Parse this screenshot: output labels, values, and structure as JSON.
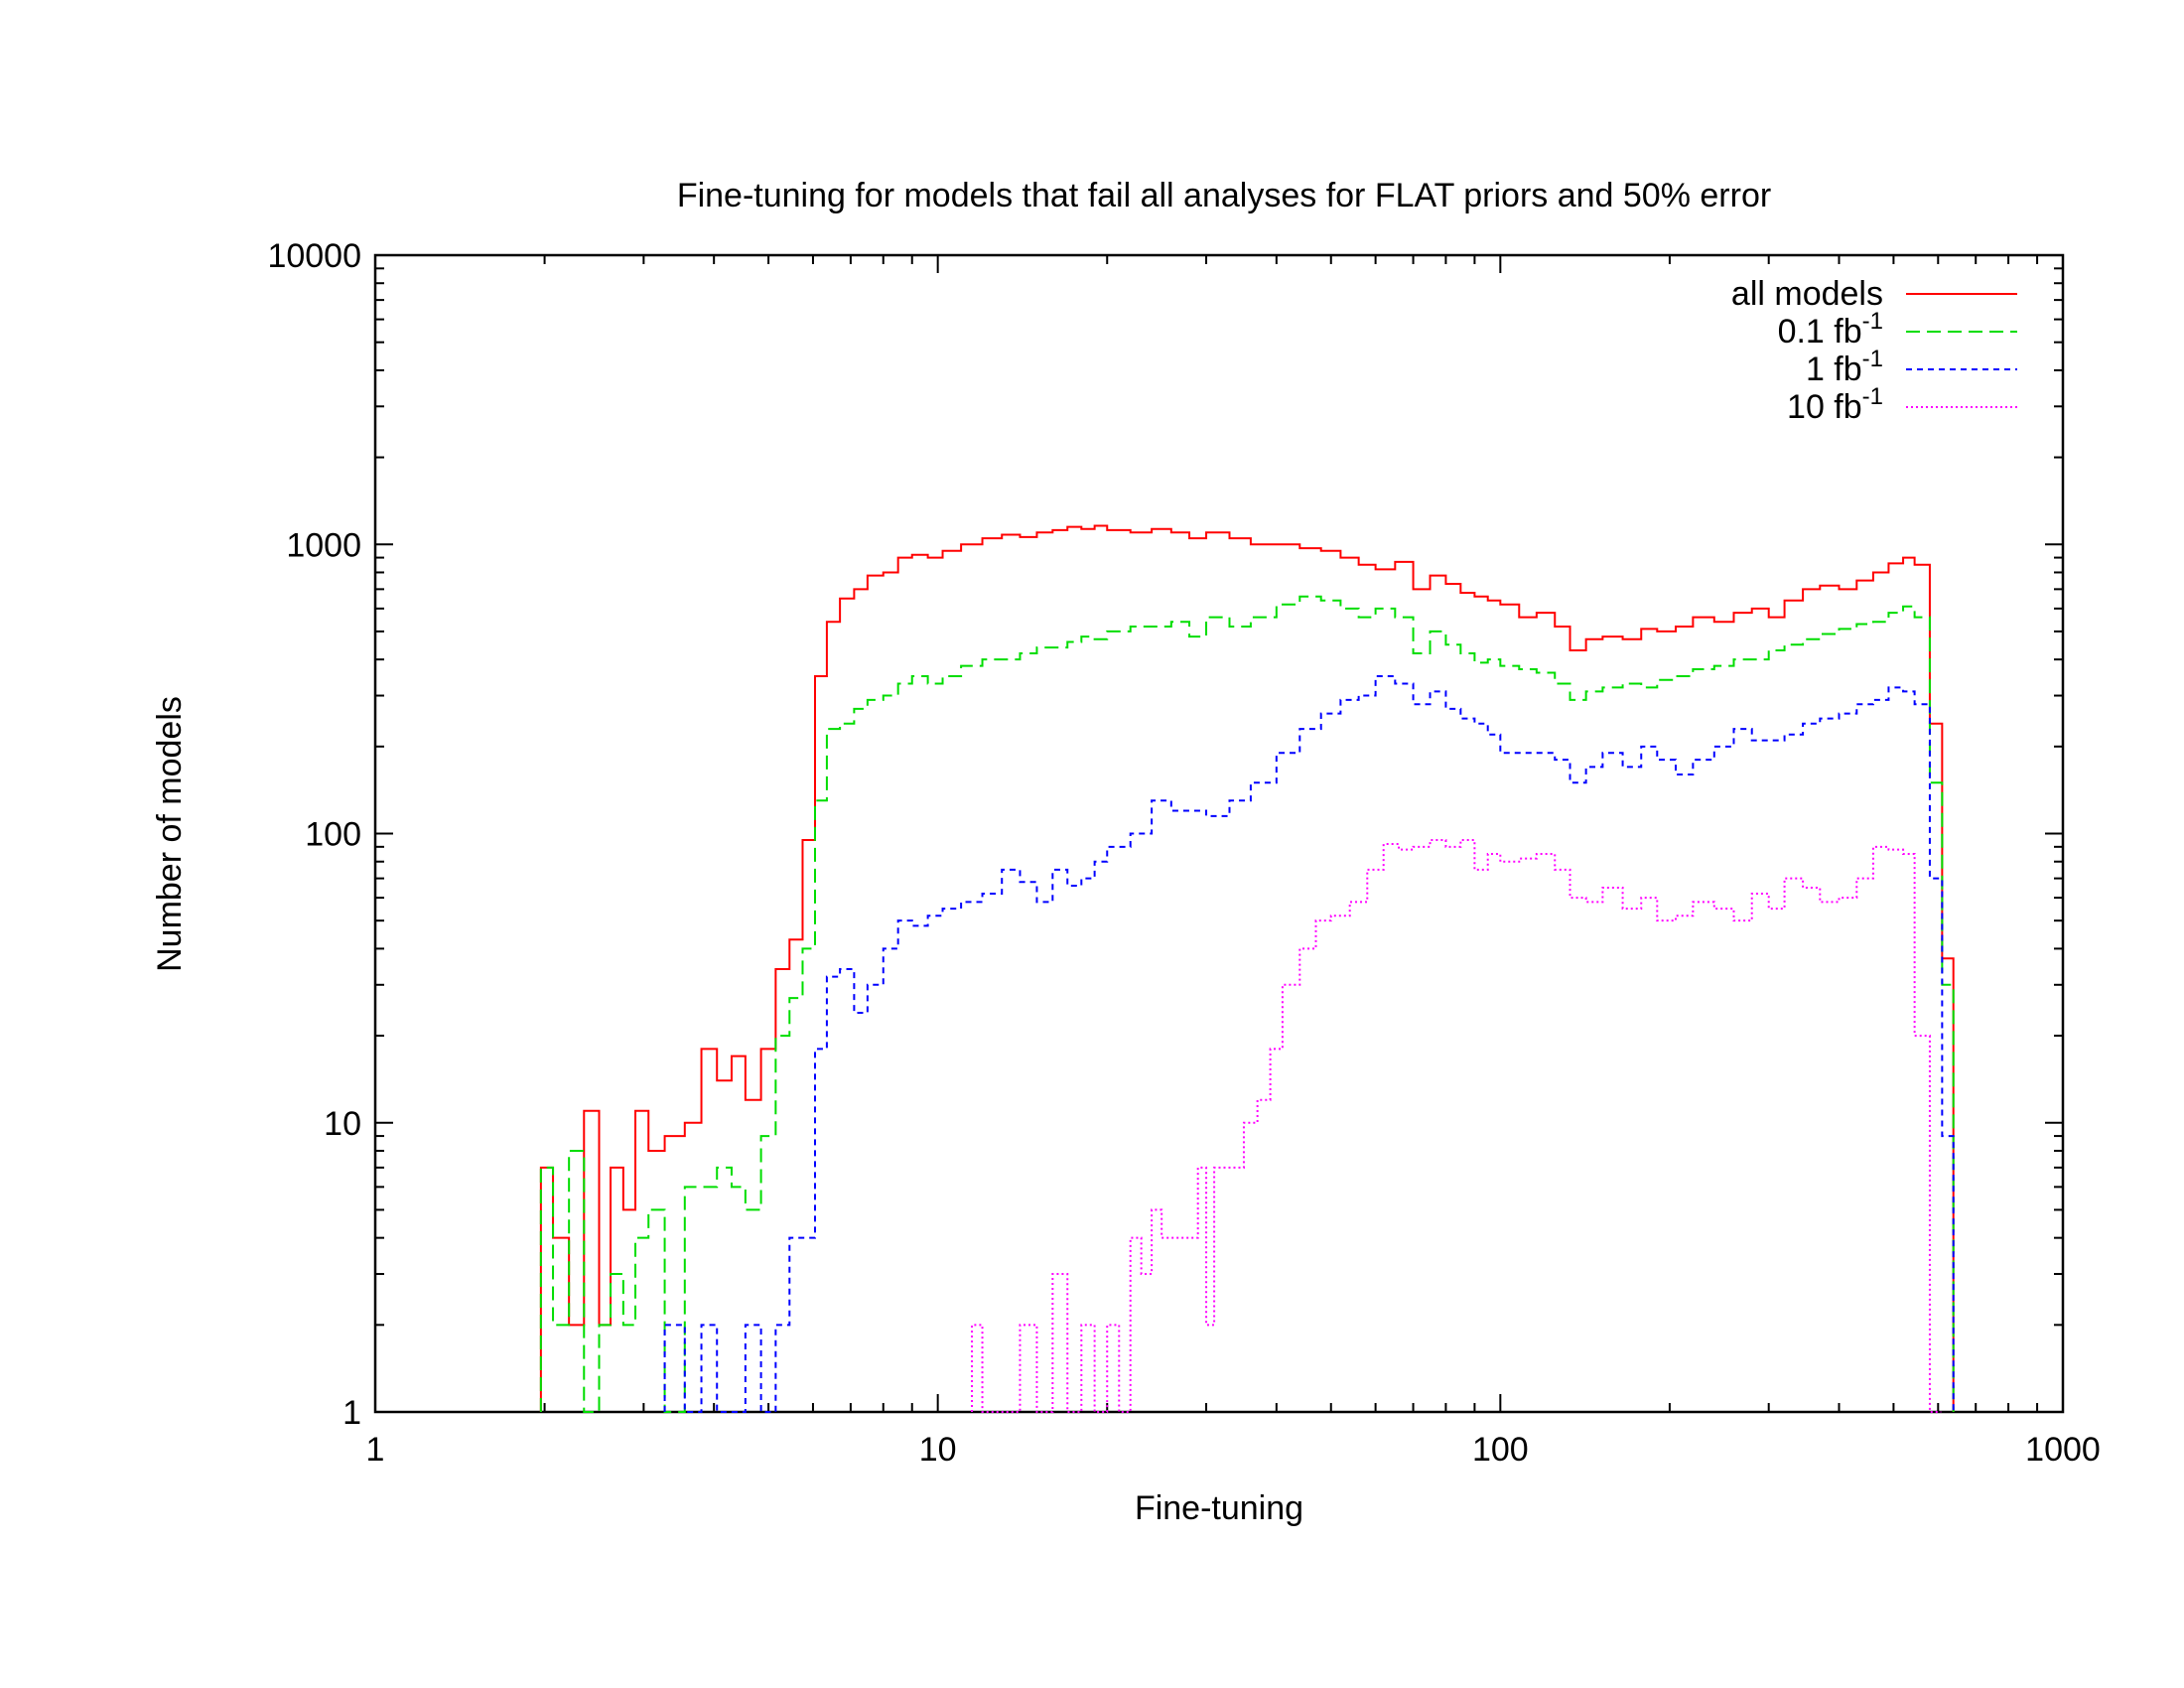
{
  "chart_data": {
    "type": "line",
    "step": true,
    "title": "Fine-tuning for models that fail all analyses for FLAT priors and 50% error",
    "xlabel": "Fine-tuning",
    "ylabel": "Number of models",
    "xscale": "log",
    "yscale": "log",
    "xlim": [
      1,
      1000
    ],
    "ylim": [
      1,
      10000
    ],
    "x_ticks": [
      {
        "value": 1,
        "label": "1"
      },
      {
        "value": 10,
        "label": "10"
      },
      {
        "value": 100,
        "label": "100"
      },
      {
        "value": 1000,
        "label": "1000"
      }
    ],
    "y_ticks": [
      {
        "value": 1,
        "label": "1"
      },
      {
        "value": 10,
        "label": "10"
      },
      {
        "value": 100,
        "label": "100"
      },
      {
        "value": 1000,
        "label": "1000"
      },
      {
        "value": 10000,
        "label": "10000"
      }
    ],
    "grid": false,
    "legend_position": "top-right",
    "series": [
      {
        "name": "all models",
        "suffix": "",
        "color": "#ff0000",
        "dash": "solid",
        "points": [
          [
            1.97,
            7
          ],
          [
            2.07,
            4
          ],
          [
            2.21,
            2
          ],
          [
            2.35,
            11
          ],
          [
            2.5,
            2
          ],
          [
            2.62,
            7
          ],
          [
            2.76,
            5
          ],
          [
            2.9,
            11
          ],
          [
            3.06,
            8
          ],
          [
            3.27,
            9
          ],
          [
            3.55,
            10
          ],
          [
            3.8,
            18
          ],
          [
            4.05,
            14
          ],
          [
            4.3,
            17
          ],
          [
            4.55,
            12
          ],
          [
            4.85,
            18
          ],
          [
            5.15,
            34
          ],
          [
            5.45,
            43
          ],
          [
            5.75,
            95
          ],
          [
            6.05,
            350
          ],
          [
            6.35,
            540
          ],
          [
            6.7,
            650
          ],
          [
            7.1,
            700
          ],
          [
            7.5,
            780
          ],
          [
            8.0,
            800
          ],
          [
            8.5,
            900
          ],
          [
            9.0,
            920
          ],
          [
            9.6,
            900
          ],
          [
            10.2,
            950
          ],
          [
            11,
            1000
          ],
          [
            12,
            1050
          ],
          [
            13,
            1080
          ],
          [
            14,
            1060
          ],
          [
            15,
            1100
          ],
          [
            16,
            1120
          ],
          [
            17,
            1150
          ],
          [
            18,
            1130
          ],
          [
            19,
            1160
          ],
          [
            20,
            1120
          ],
          [
            22,
            1100
          ],
          [
            24,
            1130
          ],
          [
            26,
            1100
          ],
          [
            28,
            1050
          ],
          [
            30,
            1100
          ],
          [
            33,
            1050
          ],
          [
            36,
            1000
          ],
          [
            40,
            1000
          ],
          [
            44,
            970
          ],
          [
            48,
            950
          ],
          [
            52,
            900
          ],
          [
            56,
            850
          ],
          [
            60,
            820
          ],
          [
            65,
            870
          ],
          [
            70,
            700
          ],
          [
            75,
            780
          ],
          [
            80,
            730
          ],
          [
            85,
            680
          ],
          [
            90,
            660
          ],
          [
            95,
            640
          ],
          [
            100,
            620
          ],
          [
            108,
            560
          ],
          [
            116,
            580
          ],
          [
            125,
            520
          ],
          [
            133,
            430
          ],
          [
            142,
            470
          ],
          [
            152,
            480
          ],
          [
            165,
            470
          ],
          [
            178,
            510
          ],
          [
            190,
            500
          ],
          [
            205,
            520
          ],
          [
            220,
            560
          ],
          [
            240,
            540
          ],
          [
            260,
            580
          ],
          [
            280,
            600
          ],
          [
            300,
            560
          ],
          [
            320,
            640
          ],
          [
            345,
            700
          ],
          [
            370,
            720
          ],
          [
            400,
            700
          ],
          [
            430,
            750
          ],
          [
            460,
            800
          ],
          [
            490,
            860
          ],
          [
            520,
            900
          ],
          [
            545,
            850
          ],
          [
            580,
            240
          ],
          [
            610,
            37
          ]
        ]
      },
      {
        "name": "0.1 fb",
        "suffix": "-1",
        "color": "#00dd00",
        "dash": "dashed",
        "points": [
          [
            1.97,
            7
          ],
          [
            2.07,
            2
          ],
          [
            2.21,
            8
          ],
          [
            2.35,
            1
          ],
          [
            2.5,
            2
          ],
          [
            2.62,
            3
          ],
          [
            2.76,
            2
          ],
          [
            2.9,
            4
          ],
          [
            3.06,
            5
          ],
          [
            3.27,
            1
          ],
          [
            3.55,
            6
          ],
          [
            3.8,
            6
          ],
          [
            4.05,
            7
          ],
          [
            4.3,
            6
          ],
          [
            4.55,
            5
          ],
          [
            4.85,
            9
          ],
          [
            5.15,
            20
          ],
          [
            5.45,
            27
          ],
          [
            5.75,
            40
          ],
          [
            6.05,
            130
          ],
          [
            6.35,
            230
          ],
          [
            6.7,
            240
          ],
          [
            7.1,
            270
          ],
          [
            7.5,
            290
          ],
          [
            8.0,
            300
          ],
          [
            8.5,
            330
          ],
          [
            9.0,
            350
          ],
          [
            9.6,
            330
          ],
          [
            10.2,
            350
          ],
          [
            11,
            380
          ],
          [
            12,
            400
          ],
          [
            13,
            400
          ],
          [
            14,
            420
          ],
          [
            15,
            440
          ],
          [
            16,
            440
          ],
          [
            17,
            460
          ],
          [
            18,
            480
          ],
          [
            19,
            470
          ],
          [
            20,
            500
          ],
          [
            22,
            520
          ],
          [
            24,
            520
          ],
          [
            26,
            540
          ],
          [
            28,
            480
          ],
          [
            30,
            560
          ],
          [
            33,
            520
          ],
          [
            36,
            560
          ],
          [
            40,
            620
          ],
          [
            44,
            660
          ],
          [
            48,
            640
          ],
          [
            52,
            600
          ],
          [
            56,
            560
          ],
          [
            60,
            600
          ],
          [
            65,
            560
          ],
          [
            70,
            420
          ],
          [
            75,
            500
          ],
          [
            80,
            450
          ],
          [
            85,
            420
          ],
          [
            90,
            390
          ],
          [
            95,
            400
          ],
          [
            100,
            380
          ],
          [
            108,
            370
          ],
          [
            116,
            360
          ],
          [
            125,
            330
          ],
          [
            133,
            290
          ],
          [
            142,
            310
          ],
          [
            152,
            320
          ],
          [
            165,
            330
          ],
          [
            178,
            320
          ],
          [
            190,
            340
          ],
          [
            205,
            350
          ],
          [
            220,
            370
          ],
          [
            240,
            380
          ],
          [
            260,
            400
          ],
          [
            280,
            400
          ],
          [
            300,
            430
          ],
          [
            320,
            450
          ],
          [
            345,
            470
          ],
          [
            370,
            490
          ],
          [
            400,
            510
          ],
          [
            430,
            530
          ],
          [
            460,
            540
          ],
          [
            490,
            580
          ],
          [
            520,
            610
          ],
          [
            545,
            560
          ],
          [
            580,
            150
          ],
          [
            610,
            30
          ]
        ]
      },
      {
        "name": "1 fb",
        "suffix": "-1",
        "color": "#0000ff",
        "dash": "short-dashed",
        "points": [
          [
            3.27,
            2
          ],
          [
            3.55,
            1
          ],
          [
            3.8,
            2
          ],
          [
            4.05,
            1
          ],
          [
            4.55,
            2
          ],
          [
            4.85,
            1
          ],
          [
            5.15,
            2
          ],
          [
            5.45,
            4
          ],
          [
            5.75,
            4
          ],
          [
            6.05,
            18
          ],
          [
            6.35,
            32
          ],
          [
            6.7,
            34
          ],
          [
            7.1,
            24
          ],
          [
            7.5,
            30
          ],
          [
            8.0,
            40
          ],
          [
            8.5,
            50
          ],
          [
            9.0,
            48
          ],
          [
            9.6,
            52
          ],
          [
            10.2,
            55
          ],
          [
            11,
            58
          ],
          [
            12,
            62
          ],
          [
            13,
            75
          ],
          [
            14,
            68
          ],
          [
            15,
            58
          ],
          [
            16,
            75
          ],
          [
            17,
            66
          ],
          [
            18,
            70
          ],
          [
            19,
            80
          ],
          [
            20,
            90
          ],
          [
            22,
            100
          ],
          [
            24,
            130
          ],
          [
            26,
            120
          ],
          [
            28,
            120
          ],
          [
            30,
            115
          ],
          [
            33,
            130
          ],
          [
            36,
            150
          ],
          [
            40,
            190
          ],
          [
            44,
            230
          ],
          [
            48,
            260
          ],
          [
            52,
            290
          ],
          [
            56,
            300
          ],
          [
            60,
            350
          ],
          [
            65,
            330
          ],
          [
            70,
            280
          ],
          [
            75,
            310
          ],
          [
            80,
            270
          ],
          [
            85,
            250
          ],
          [
            90,
            240
          ],
          [
            95,
            220
          ],
          [
            100,
            190
          ],
          [
            108,
            190
          ],
          [
            116,
            190
          ],
          [
            125,
            180
          ],
          [
            133,
            150
          ],
          [
            142,
            170
          ],
          [
            152,
            190
          ],
          [
            165,
            170
          ],
          [
            178,
            200
          ],
          [
            190,
            180
          ],
          [
            205,
            160
          ],
          [
            220,
            180
          ],
          [
            240,
            200
          ],
          [
            260,
            230
          ],
          [
            280,
            210
          ],
          [
            300,
            210
          ],
          [
            320,
            220
          ],
          [
            345,
            240
          ],
          [
            370,
            250
          ],
          [
            400,
            260
          ],
          [
            430,
            280
          ],
          [
            460,
            290
          ],
          [
            490,
            320
          ],
          [
            520,
            310
          ],
          [
            545,
            280
          ],
          [
            580,
            70
          ],
          [
            610,
            9
          ]
        ]
      },
      {
        "name": "10 fb",
        "suffix": "-1",
        "color": "#ff00ff",
        "dash": "dotted",
        "points": [
          [
            11.5,
            2
          ],
          [
            12,
            1
          ],
          [
            14,
            2
          ],
          [
            15,
            1
          ],
          [
            16,
            3
          ],
          [
            17,
            1
          ],
          [
            18,
            2
          ],
          [
            19,
            1
          ],
          [
            20,
            2
          ],
          [
            21,
            1
          ],
          [
            22,
            4
          ],
          [
            23,
            3
          ],
          [
            24,
            5
          ],
          [
            25,
            4
          ],
          [
            27,
            4
          ],
          [
            29,
            7
          ],
          [
            30,
            2
          ],
          [
            31,
            7
          ],
          [
            33,
            7
          ],
          [
            35,
            10
          ],
          [
            37,
            12
          ],
          [
            39,
            18
          ],
          [
            41,
            30
          ],
          [
            44,
            40
          ],
          [
            47,
            50
          ],
          [
            50,
            52
          ],
          [
            54,
            58
          ],
          [
            58,
            75
          ],
          [
            62,
            92
          ],
          [
            66,
            88
          ],
          [
            70,
            90
          ],
          [
            75,
            95
          ],
          [
            80,
            90
          ],
          [
            85,
            95
          ],
          [
            90,
            75
          ],
          [
            95,
            85
          ],
          [
            100,
            80
          ],
          [
            108,
            82
          ],
          [
            116,
            85
          ],
          [
            125,
            75
          ],
          [
            133,
            60
          ],
          [
            142,
            58
          ],
          [
            152,
            65
          ],
          [
            165,
            55
          ],
          [
            178,
            60
          ],
          [
            190,
            50
          ],
          [
            205,
            52
          ],
          [
            220,
            58
          ],
          [
            240,
            55
          ],
          [
            260,
            50
          ],
          [
            280,
            62
          ],
          [
            300,
            55
          ],
          [
            320,
            70
          ],
          [
            345,
            65
          ],
          [
            370,
            58
          ],
          [
            400,
            60
          ],
          [
            430,
            70
          ],
          [
            460,
            90
          ],
          [
            490,
            88
          ],
          [
            520,
            85
          ],
          [
            545,
            20
          ],
          [
            580,
            1
          ]
        ]
      }
    ]
  }
}
